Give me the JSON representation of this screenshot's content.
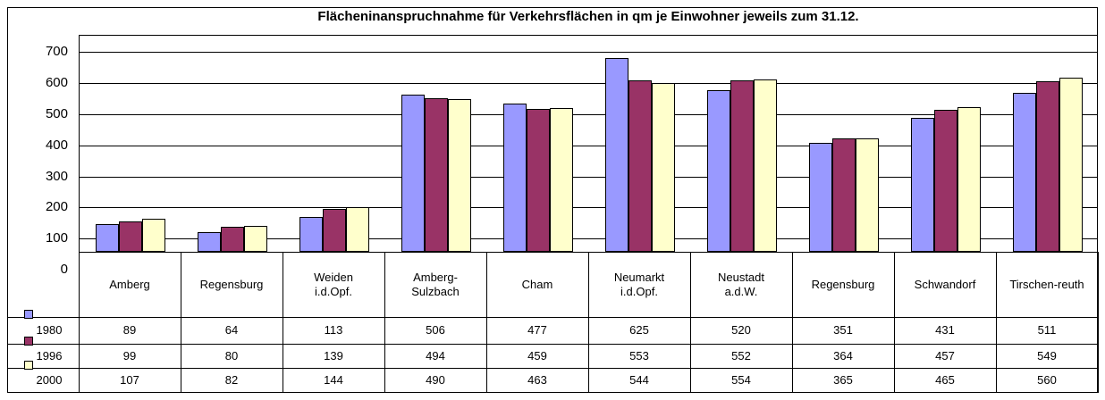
{
  "chart_data": {
    "type": "bar",
    "title": "Flächeninanspruchnahme für Verkehrsflächen in qm je Einwohner jeweils zum 31.12.",
    "categories": [
      "Amberg",
      "Regensburg",
      "Weiden\ni.d.Opf.",
      "Amberg-\nSulzbach",
      "Cham",
      "Neumarkt\ni.d.Opf.",
      "Neustadt\na.d.W.",
      "Regensburg",
      "Schwandorf",
      "Tirschen-reuth"
    ],
    "series": [
      {
        "name": "1980",
        "color": "#9999ff",
        "values": [
          89,
          64,
          113,
          506,
          477,
          625,
          520,
          351,
          431,
          511
        ]
      },
      {
        "name": "1996",
        "color": "#993366",
        "values": [
          99,
          80,
          139,
          494,
          459,
          553,
          552,
          364,
          457,
          549
        ]
      },
      {
        "name": "2000",
        "color": "#ffffcc",
        "values": [
          107,
          82,
          144,
          490,
          463,
          544,
          554,
          365,
          465,
          560
        ]
      }
    ],
    "ylim": [
      0,
      700
    ],
    "yticks": [
      0,
      100,
      200,
      300,
      400,
      500,
      600,
      700
    ],
    "grid": true
  }
}
